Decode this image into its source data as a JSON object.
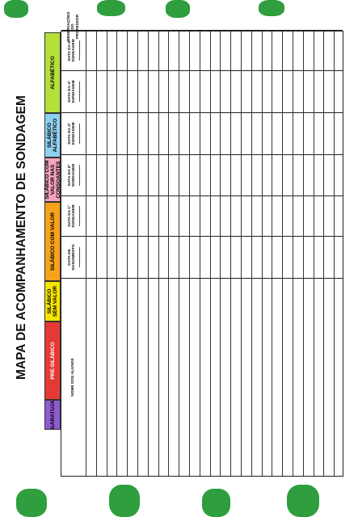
{
  "title": "MAPA DE ACOMPANHAMENTO DE SONDAGEM",
  "legend": [
    "GARATUJA",
    "PRÉ-SILÁBICO",
    "SILÁBICO SEM VALOR",
    "SILÁBICO COM VALOR",
    "SILÁBICO COM VALOR NAS CONSOANTES",
    "SILÁBICO ALFABÉTICO",
    "ALFABÉTICO"
  ],
  "table": {
    "columns": [
      "NOME DOS ALUNOS",
      "DATA DE NASCIMENTO",
      "DATA DA 1ª SONDAGEM",
      "DATA DA 2ª SONDAGEM",
      "DATA DA 3ª SONDAGEM",
      "DATA DA 4ª SONDAGEM",
      "DATA DA 5ª SONDAGEM",
      "OBSERVAÇÕES DO PROFESSOR"
    ]
  }
}
